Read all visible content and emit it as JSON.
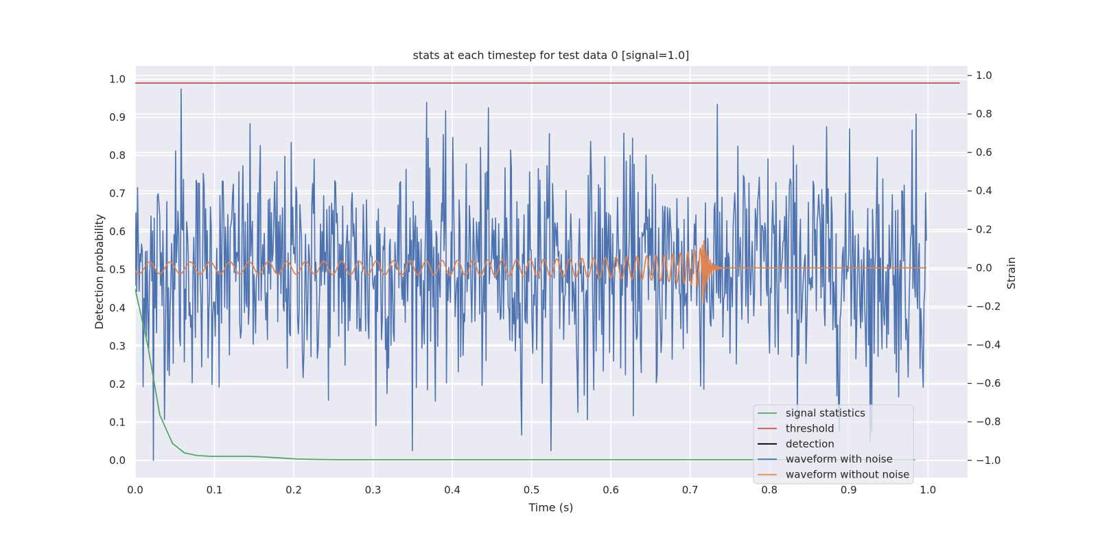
{
  "chart_data": {
    "type": "line",
    "title": "stats at each timestep for test data 0 [signal=1.0]",
    "xlabel": "Time (s)",
    "ylabel": "Detection probability",
    "y2label": "Strain",
    "xlim": [
      0.0,
      1.05
    ],
    "ylim": [
      -0.045,
      1.035
    ],
    "y2lim": [
      -1.09,
      1.05
    ],
    "xticks": [
      "0.0",
      "0.1",
      "0.2",
      "0.3",
      "0.4",
      "0.5",
      "0.6",
      "0.7",
      "0.8",
      "0.9",
      "1.0"
    ],
    "yticks": [
      "0.0",
      "0.1",
      "0.2",
      "0.3",
      "0.4",
      "0.5",
      "0.6",
      "0.7",
      "0.8",
      "0.9",
      "1.0"
    ],
    "y2ticks": [
      "−1.0",
      "−0.8",
      "−0.6",
      "−0.4",
      "−0.2",
      "0.0",
      "0.2",
      "0.4",
      "0.6",
      "0.8",
      "1.0"
    ],
    "grid": true,
    "legend_position": "lower-right",
    "series": [
      {
        "name": "signal statistics",
        "axis": "left",
        "color": "#55a868",
        "x": [
          0.0,
          0.016,
          0.031,
          0.047,
          0.062,
          0.078,
          0.094,
          0.109,
          0.125,
          0.14,
          0.156,
          0.172,
          0.188,
          0.203,
          0.219,
          0.25,
          0.3,
          0.4,
          0.5,
          0.6,
          0.7,
          0.8,
          0.9,
          0.984
        ],
        "y": [
          0.45,
          0.3,
          0.12,
          0.045,
          0.02,
          0.013,
          0.011,
          0.011,
          0.011,
          0.011,
          0.01,
          0.008,
          0.006,
          0.004,
          0.003,
          0.002,
          0.002,
          0.002,
          0.002,
          0.002,
          0.002,
          0.002,
          0.002,
          0.002
        ]
      },
      {
        "name": "threshold",
        "axis": "left",
        "color": "#c44e52",
        "x": [
          0.0,
          1.04
        ],
        "y": [
          0.99,
          0.99
        ]
      },
      {
        "name": "detection",
        "axis": "left",
        "color": "#000000",
        "x": [],
        "y": []
      },
      {
        "name": "waveform with noise",
        "axis": "right",
        "color": "#4c72b0",
        "x_range": [
          0.0,
          0.998
        ],
        "samples": 1000,
        "noise_std": 0.3,
        "peaks": [
          {
            "x": 0.058,
            "y": 0.93
          },
          {
            "x": 0.023,
            "y": -1.0
          },
          {
            "x": 0.368,
            "y": 0.86
          },
          {
            "x": 0.304,
            "y": -0.82
          },
          {
            "x": 0.985,
            "y": 0.8
          },
          {
            "x": 0.927,
            "y": -0.9
          },
          {
            "x": 0.558,
            "y": -0.75
          },
          {
            "x": 0.888,
            "y": -0.85
          }
        ]
      },
      {
        "name": "waveform without noise",
        "axis": "right",
        "color": "#dd8452",
        "x_range": [
          0.0,
          0.998
        ],
        "samples": 2000,
        "chirp": {
          "f0": 38,
          "t_merger": 0.715,
          "amp0": 0.03,
          "peak_amp": 0.24,
          "ringdown_end": 0.74
        }
      }
    ]
  }
}
